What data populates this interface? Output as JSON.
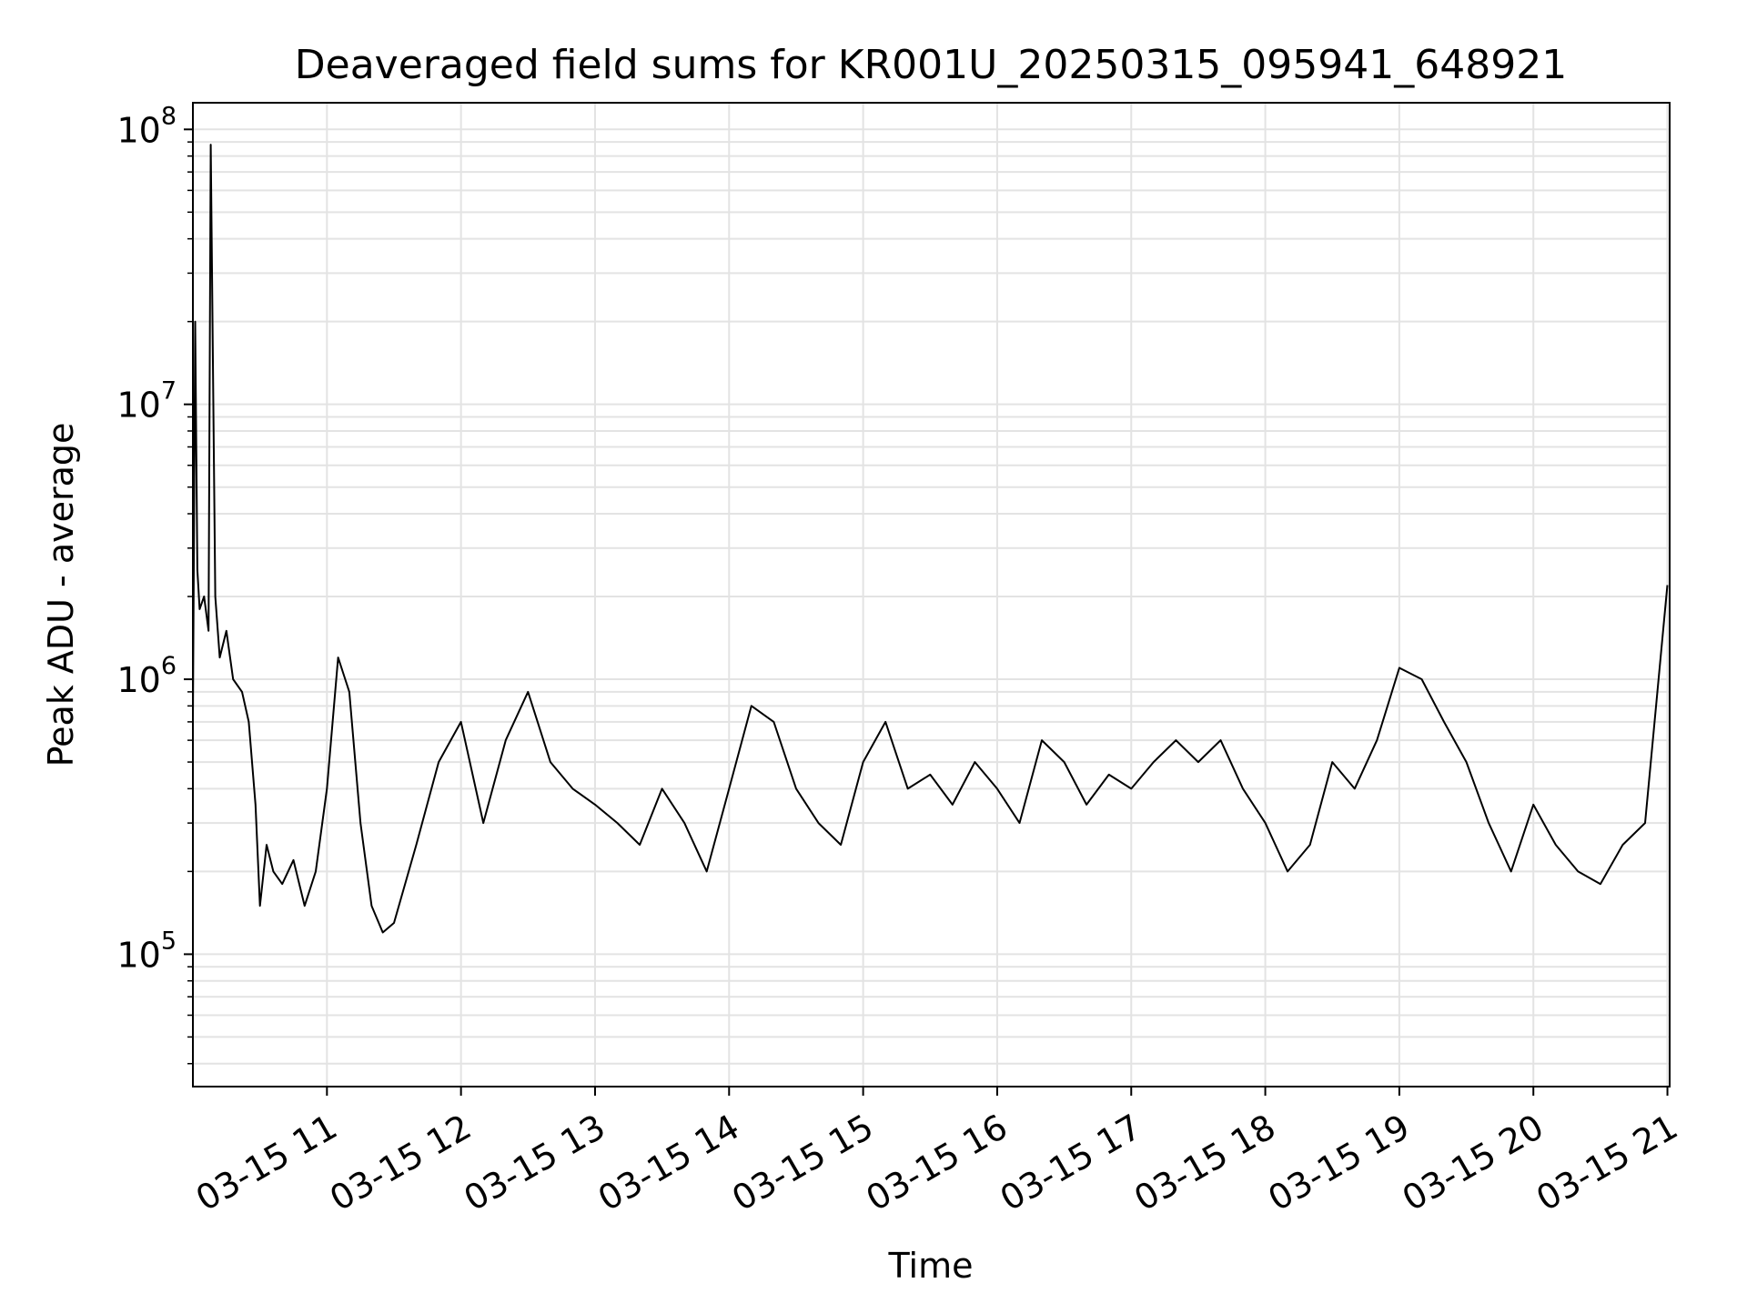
{
  "chart_data": {
    "type": "line",
    "title": "Deaveraged field sums for KR001U_20250315_095941_648921",
    "xlabel": "Time",
    "ylabel": "Peak ADU - average",
    "yscale": "log",
    "ylim": [
      33000,
      125000000
    ],
    "xlim": [
      "2025-03-15 10:00",
      "2025-03-15 21:01"
    ],
    "grid": true,
    "x_ticks": [
      "03-15 11",
      "03-15 12",
      "03-15 13",
      "03-15 14",
      "03-15 15",
      "03-15 16",
      "03-15 17",
      "03-15 18",
      "03-15 19",
      "03-15 20",
      "03-15 21"
    ],
    "y_ticks": [
      {
        "value": 100000,
        "base": "10",
        "exp": "5"
      },
      {
        "value": 1000000,
        "base": "10",
        "exp": "6"
      },
      {
        "value": 10000000,
        "base": "10",
        "exp": "7"
      },
      {
        "value": 100000000,
        "base": "10",
        "exp": "8"
      }
    ],
    "line_color": "#000000",
    "series": [
      {
        "x": [
          "2025-03-15 10:00",
          "2025-03-15 10:01",
          "2025-03-15 10:02",
          "2025-03-15 10:03",
          "2025-03-15 10:05",
          "2025-03-15 10:07",
          "2025-03-15 10:08",
          "2025-03-15 10:10",
          "2025-03-15 10:12",
          "2025-03-15 10:15",
          "2025-03-15 10:18",
          "2025-03-15 10:22",
          "2025-03-15 10:25",
          "2025-03-15 10:28",
          "2025-03-15 10:30",
          "2025-03-15 10:33",
          "2025-03-15 10:36",
          "2025-03-15 10:40",
          "2025-03-15 10:45",
          "2025-03-15 10:50",
          "2025-03-15 10:55",
          "2025-03-15 11:00",
          "2025-03-15 11:05",
          "2025-03-15 11:10",
          "2025-03-15 11:15",
          "2025-03-15 11:20",
          "2025-03-15 11:25",
          "2025-03-15 11:30",
          "2025-03-15 11:40",
          "2025-03-15 11:50",
          "2025-03-15 12:00",
          "2025-03-15 12:10",
          "2025-03-15 12:20",
          "2025-03-15 12:30",
          "2025-03-15 12:40",
          "2025-03-15 12:50",
          "2025-03-15 13:00",
          "2025-03-15 13:10",
          "2025-03-15 13:20",
          "2025-03-15 13:30",
          "2025-03-15 13:40",
          "2025-03-15 13:50",
          "2025-03-15 14:00",
          "2025-03-15 14:10",
          "2025-03-15 14:20",
          "2025-03-15 14:30",
          "2025-03-15 14:40",
          "2025-03-15 14:50",
          "2025-03-15 15:00",
          "2025-03-15 15:10",
          "2025-03-15 15:20",
          "2025-03-15 15:30",
          "2025-03-15 15:40",
          "2025-03-15 15:50",
          "2025-03-15 16:00",
          "2025-03-15 16:10",
          "2025-03-15 16:20",
          "2025-03-15 16:30",
          "2025-03-15 16:40",
          "2025-03-15 16:50",
          "2025-03-15 17:00",
          "2025-03-15 17:10",
          "2025-03-15 17:20",
          "2025-03-15 17:30",
          "2025-03-15 17:40",
          "2025-03-15 17:50",
          "2025-03-15 18:00",
          "2025-03-15 18:10",
          "2025-03-15 18:20",
          "2025-03-15 18:30",
          "2025-03-15 18:40",
          "2025-03-15 18:50",
          "2025-03-15 19:00",
          "2025-03-15 19:10",
          "2025-03-15 19:20",
          "2025-03-15 19:30",
          "2025-03-15 19:40",
          "2025-03-15 19:50",
          "2025-03-15 20:00",
          "2025-03-15 20:10",
          "2025-03-15 20:20",
          "2025-03-15 20:30",
          "2025-03-15 20:40",
          "2025-03-15 20:50",
          "2025-03-15 21:00"
        ],
        "y": [
          700000,
          20000000,
          2500000,
          1800000,
          2000000,
          1500000,
          88000000,
          2000000,
          1200000,
          1500000,
          1000000,
          900000,
          700000,
          350000,
          150000,
          250000,
          200000,
          180000,
          220000,
          150000,
          200000,
          400000,
          1200000,
          900000,
          300000,
          150000,
          120000,
          130000,
          250000,
          500000,
          700000,
          300000,
          600000,
          900000,
          500000,
          400000,
          350000,
          300000,
          250000,
          400000,
          300000,
          200000,
          400000,
          800000,
          700000,
          400000,
          300000,
          250000,
          500000,
          700000,
          400000,
          450000,
          350000,
          500000,
          400000,
          300000,
          600000,
          500000,
          350000,
          450000,
          400000,
          500000,
          600000,
          500000,
          600000,
          400000,
          300000,
          200000,
          250000,
          500000,
          400000,
          600000,
          1100000,
          1000000,
          700000,
          500000,
          300000,
          200000,
          350000,
          250000,
          200000,
          180000,
          250000,
          300000,
          2200000
        ]
      }
    ]
  }
}
